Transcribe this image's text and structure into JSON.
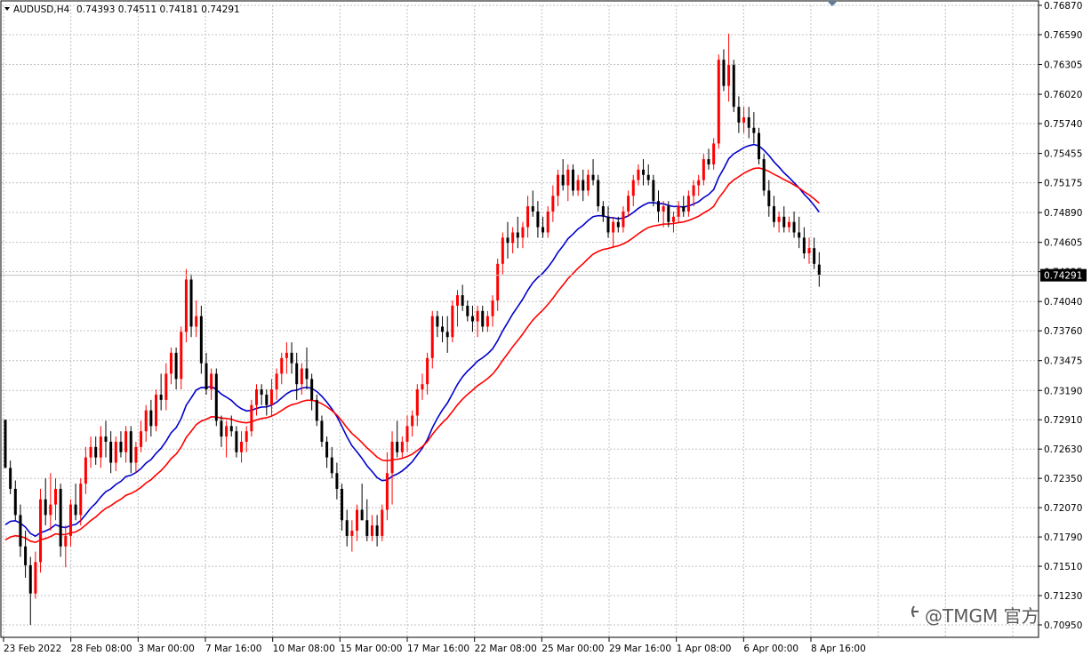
{
  "header": {
    "symbol_label": "AUDUSD,H4",
    "ohlc_label": "0.74393 0.74511 0.74181 0.74291"
  },
  "price_box": "0.74291",
  "watermark": "@TMGM 官方",
  "colors": {
    "bull": "#ff0000",
    "bear": "#000000",
    "ma_fast": "#0000cc",
    "ma_slow": "#ff0000",
    "grid": "#c0c0c0",
    "price_line": "#c0c0c0"
  },
  "chart_data": {
    "type": "candlestick",
    "symbol": "AUDUSD",
    "timeframe": "H4",
    "ylim": [
      0.7095,
      0.7687
    ],
    "y_ticks": [
      "0.76870",
      "0.76590",
      "0.76305",
      "0.76020",
      "0.75740",
      "0.75455",
      "0.75175",
      "0.74890",
      "0.74605",
      "0.74325",
      "0.74040",
      "0.73760",
      "0.73475",
      "0.73190",
      "0.72910",
      "0.72630",
      "0.72350",
      "0.72070",
      "0.71790",
      "0.71510",
      "0.71230",
      "0.70950"
    ],
    "x_ticks": [
      "23 Feb 2022",
      "28 Feb 08:00",
      "3 Mar 00:00",
      "7 Mar 16:00",
      "10 Mar 08:00",
      "15 Mar 00:00",
      "17 Mar 16:00",
      "22 Mar 08:00",
      "25 Mar 00:00",
      "29 Mar 16:00",
      "1 Apr 08:00",
      "6 Apr 00:00",
      "8 Apr 16:00"
    ],
    "last_close": 0.74291,
    "candles": [
      {
        "o": 0.7291,
        "h": 0.7291,
        "l": 0.7245,
        "c": 0.7245
      },
      {
        "o": 0.7245,
        "h": 0.7252,
        "l": 0.722,
        "c": 0.7225
      },
      {
        "o": 0.7225,
        "h": 0.7233,
        "l": 0.7195,
        "c": 0.72
      },
      {
        "o": 0.72,
        "h": 0.721,
        "l": 0.716,
        "c": 0.717
      },
      {
        "o": 0.717,
        "h": 0.7185,
        "l": 0.714,
        "c": 0.7152
      },
      {
        "o": 0.7152,
        "h": 0.716,
        "l": 0.7095,
        "c": 0.7125
      },
      {
        "o": 0.7125,
        "h": 0.7165,
        "l": 0.712,
        "c": 0.7155
      },
      {
        "o": 0.7155,
        "h": 0.7225,
        "l": 0.7145,
        "c": 0.7215
      },
      {
        "o": 0.7215,
        "h": 0.7235,
        "l": 0.719,
        "c": 0.72
      },
      {
        "o": 0.72,
        "h": 0.724,
        "l": 0.7185,
        "c": 0.721
      },
      {
        "o": 0.721,
        "h": 0.7235,
        "l": 0.7195,
        "c": 0.7225
      },
      {
        "o": 0.7225,
        "h": 0.723,
        "l": 0.716,
        "c": 0.717
      },
      {
        "o": 0.717,
        "h": 0.719,
        "l": 0.715,
        "c": 0.718
      },
      {
        "o": 0.718,
        "h": 0.7215,
        "l": 0.717,
        "c": 0.721
      },
      {
        "o": 0.721,
        "h": 0.723,
        "l": 0.7195,
        "c": 0.72
      },
      {
        "o": 0.72,
        "h": 0.7235,
        "l": 0.719,
        "c": 0.723
      },
      {
        "o": 0.723,
        "h": 0.7265,
        "l": 0.722,
        "c": 0.7255
      },
      {
        "o": 0.7255,
        "h": 0.7275,
        "l": 0.7245,
        "c": 0.7265
      },
      {
        "o": 0.7265,
        "h": 0.7275,
        "l": 0.7248,
        "c": 0.7255
      },
      {
        "o": 0.7255,
        "h": 0.7285,
        "l": 0.7245,
        "c": 0.7275
      },
      {
        "o": 0.7275,
        "h": 0.729,
        "l": 0.7255,
        "c": 0.727
      },
      {
        "o": 0.727,
        "h": 0.728,
        "l": 0.724,
        "c": 0.725
      },
      {
        "o": 0.725,
        "h": 0.7275,
        "l": 0.7242,
        "c": 0.727
      },
      {
        "o": 0.727,
        "h": 0.728,
        "l": 0.7255,
        "c": 0.726
      },
      {
        "o": 0.726,
        "h": 0.7285,
        "l": 0.725,
        "c": 0.728
      },
      {
        "o": 0.728,
        "h": 0.7285,
        "l": 0.724,
        "c": 0.725
      },
      {
        "o": 0.725,
        "h": 0.727,
        "l": 0.724,
        "c": 0.7265
      },
      {
        "o": 0.7265,
        "h": 0.729,
        "l": 0.726,
        "c": 0.728
      },
      {
        "o": 0.728,
        "h": 0.7305,
        "l": 0.727,
        "c": 0.73
      },
      {
        "o": 0.73,
        "h": 0.731,
        "l": 0.7275,
        "c": 0.7285
      },
      {
        "o": 0.7285,
        "h": 0.732,
        "l": 0.728,
        "c": 0.7315
      },
      {
        "o": 0.7315,
        "h": 0.7335,
        "l": 0.73,
        "c": 0.731
      },
      {
        "o": 0.731,
        "h": 0.7345,
        "l": 0.73,
        "c": 0.7335
      },
      {
        "o": 0.7335,
        "h": 0.736,
        "l": 0.7325,
        "c": 0.7355
      },
      {
        "o": 0.7355,
        "h": 0.736,
        "l": 0.732,
        "c": 0.733
      },
      {
        "o": 0.733,
        "h": 0.738,
        "l": 0.732,
        "c": 0.7375
      },
      {
        "o": 0.7375,
        "h": 0.7435,
        "l": 0.7365,
        "c": 0.7425
      },
      {
        "o": 0.7425,
        "h": 0.743,
        "l": 0.737,
        "c": 0.738
      },
      {
        "o": 0.738,
        "h": 0.7405,
        "l": 0.737,
        "c": 0.739
      },
      {
        "o": 0.739,
        "h": 0.74,
        "l": 0.7335,
        "c": 0.7345
      },
      {
        "o": 0.7345,
        "h": 0.7355,
        "l": 0.7315,
        "c": 0.732
      },
      {
        "o": 0.732,
        "h": 0.734,
        "l": 0.731,
        "c": 0.7335
      },
      {
        "o": 0.7335,
        "h": 0.734,
        "l": 0.7285,
        "c": 0.729
      },
      {
        "o": 0.729,
        "h": 0.7295,
        "l": 0.7265,
        "c": 0.7275
      },
      {
        "o": 0.7275,
        "h": 0.729,
        "l": 0.7255,
        "c": 0.7285
      },
      {
        "o": 0.7285,
        "h": 0.7295,
        "l": 0.7275,
        "c": 0.728
      },
      {
        "o": 0.728,
        "h": 0.7285,
        "l": 0.7255,
        "c": 0.726
      },
      {
        "o": 0.726,
        "h": 0.728,
        "l": 0.725,
        "c": 0.727
      },
      {
        "o": 0.727,
        "h": 0.7285,
        "l": 0.726,
        "c": 0.728
      },
      {
        "o": 0.728,
        "h": 0.731,
        "l": 0.7275,
        "c": 0.7305
      },
      {
        "o": 0.7305,
        "h": 0.7325,
        "l": 0.7295,
        "c": 0.732
      },
      {
        "o": 0.732,
        "h": 0.7325,
        "l": 0.7305,
        "c": 0.7315
      },
      {
        "o": 0.7315,
        "h": 0.732,
        "l": 0.7295,
        "c": 0.7305
      },
      {
        "o": 0.7305,
        "h": 0.733,
        "l": 0.7295,
        "c": 0.732
      },
      {
        "o": 0.732,
        "h": 0.734,
        "l": 0.731,
        "c": 0.7335
      },
      {
        "o": 0.7335,
        "h": 0.7355,
        "l": 0.7325,
        "c": 0.735
      },
      {
        "o": 0.735,
        "h": 0.7365,
        "l": 0.7335,
        "c": 0.7355
      },
      {
        "o": 0.7355,
        "h": 0.7365,
        "l": 0.7335,
        "c": 0.7345
      },
      {
        "o": 0.7345,
        "h": 0.7355,
        "l": 0.731,
        "c": 0.7325
      },
      {
        "o": 0.7325,
        "h": 0.7345,
        "l": 0.7315,
        "c": 0.734
      },
      {
        "o": 0.734,
        "h": 0.736,
        "l": 0.732,
        "c": 0.733
      },
      {
        "o": 0.733,
        "h": 0.7335,
        "l": 0.73,
        "c": 0.731
      },
      {
        "o": 0.731,
        "h": 0.7315,
        "l": 0.7285,
        "c": 0.729
      },
      {
        "o": 0.729,
        "h": 0.7295,
        "l": 0.7265,
        "c": 0.727
      },
      {
        "o": 0.727,
        "h": 0.7275,
        "l": 0.7245,
        "c": 0.7255
      },
      {
        "o": 0.7255,
        "h": 0.7265,
        "l": 0.7235,
        "c": 0.724
      },
      {
        "o": 0.724,
        "h": 0.725,
        "l": 0.7215,
        "c": 0.7225
      },
      {
        "o": 0.7225,
        "h": 0.723,
        "l": 0.7185,
        "c": 0.7195
      },
      {
        "o": 0.7195,
        "h": 0.7205,
        "l": 0.717,
        "c": 0.718
      },
      {
        "o": 0.718,
        "h": 0.7195,
        "l": 0.7165,
        "c": 0.7185
      },
      {
        "o": 0.7185,
        "h": 0.721,
        "l": 0.7175,
        "c": 0.7205
      },
      {
        "o": 0.7205,
        "h": 0.723,
        "l": 0.7195,
        "c": 0.7195
      },
      {
        "o": 0.7195,
        "h": 0.7215,
        "l": 0.7175,
        "c": 0.718
      },
      {
        "o": 0.718,
        "h": 0.72,
        "l": 0.7175,
        "c": 0.719
      },
      {
        "o": 0.719,
        "h": 0.72,
        "l": 0.717,
        "c": 0.718
      },
      {
        "o": 0.718,
        "h": 0.721,
        "l": 0.7175,
        "c": 0.7205
      },
      {
        "o": 0.7205,
        "h": 0.726,
        "l": 0.7195,
        "c": 0.724
      },
      {
        "o": 0.724,
        "h": 0.728,
        "l": 0.721,
        "c": 0.727
      },
      {
        "o": 0.727,
        "h": 0.729,
        "l": 0.7255,
        "c": 0.726
      },
      {
        "o": 0.726,
        "h": 0.7275,
        "l": 0.7255,
        "c": 0.727
      },
      {
        "o": 0.727,
        "h": 0.7295,
        "l": 0.726,
        "c": 0.7285
      },
      {
        "o": 0.7285,
        "h": 0.73,
        "l": 0.7275,
        "c": 0.7295
      },
      {
        "o": 0.7295,
        "h": 0.7325,
        "l": 0.7285,
        "c": 0.732
      },
      {
        "o": 0.732,
        "h": 0.7335,
        "l": 0.731,
        "c": 0.7325
      },
      {
        "o": 0.7325,
        "h": 0.7355,
        "l": 0.7315,
        "c": 0.735
      },
      {
        "o": 0.735,
        "h": 0.7395,
        "l": 0.734,
        "c": 0.739
      },
      {
        "o": 0.739,
        "h": 0.7395,
        "l": 0.737,
        "c": 0.738
      },
      {
        "o": 0.738,
        "h": 0.739,
        "l": 0.7365,
        "c": 0.7375
      },
      {
        "o": 0.7375,
        "h": 0.739,
        "l": 0.7355,
        "c": 0.737
      },
      {
        "o": 0.737,
        "h": 0.7405,
        "l": 0.7365,
        "c": 0.74
      },
      {
        "o": 0.74,
        "h": 0.7415,
        "l": 0.738,
        "c": 0.741
      },
      {
        "o": 0.741,
        "h": 0.742,
        "l": 0.7395,
        "c": 0.74
      },
      {
        "o": 0.74,
        "h": 0.7405,
        "l": 0.7385,
        "c": 0.739
      },
      {
        "o": 0.739,
        "h": 0.74,
        "l": 0.7375,
        "c": 0.7385
      },
      {
        "o": 0.7385,
        "h": 0.74,
        "l": 0.737,
        "c": 0.7395
      },
      {
        "o": 0.7395,
        "h": 0.74,
        "l": 0.7375,
        "c": 0.738
      },
      {
        "o": 0.738,
        "h": 0.7395,
        "l": 0.7375,
        "c": 0.739
      },
      {
        "o": 0.739,
        "h": 0.741,
        "l": 0.738,
        "c": 0.7405
      },
      {
        "o": 0.7405,
        "h": 0.7445,
        "l": 0.7395,
        "c": 0.744
      },
      {
        "o": 0.744,
        "h": 0.747,
        "l": 0.743,
        "c": 0.7465
      },
      {
        "o": 0.7465,
        "h": 0.748,
        "l": 0.7445,
        "c": 0.746
      },
      {
        "o": 0.746,
        "h": 0.7475,
        "l": 0.745,
        "c": 0.747
      },
      {
        "o": 0.747,
        "h": 0.7485,
        "l": 0.7455,
        "c": 0.7465
      },
      {
        "o": 0.7465,
        "h": 0.748,
        "l": 0.7455,
        "c": 0.7475
      },
      {
        "o": 0.7475,
        "h": 0.7505,
        "l": 0.7465,
        "c": 0.7495
      },
      {
        "o": 0.7495,
        "h": 0.751,
        "l": 0.7485,
        "c": 0.749
      },
      {
        "o": 0.749,
        "h": 0.75,
        "l": 0.7465,
        "c": 0.7475
      },
      {
        "o": 0.7475,
        "h": 0.7485,
        "l": 0.7465,
        "c": 0.747
      },
      {
        "o": 0.747,
        "h": 0.7495,
        "l": 0.7465,
        "c": 0.749
      },
      {
        "o": 0.749,
        "h": 0.7515,
        "l": 0.748,
        "c": 0.7505
      },
      {
        "o": 0.7505,
        "h": 0.753,
        "l": 0.7495,
        "c": 0.7525
      },
      {
        "o": 0.7525,
        "h": 0.754,
        "l": 0.751,
        "c": 0.7515
      },
      {
        "o": 0.7515,
        "h": 0.7535,
        "l": 0.75,
        "c": 0.753
      },
      {
        "o": 0.753,
        "h": 0.7535,
        "l": 0.7505,
        "c": 0.751
      },
      {
        "o": 0.751,
        "h": 0.7525,
        "l": 0.7505,
        "c": 0.752
      },
      {
        "o": 0.752,
        "h": 0.753,
        "l": 0.75,
        "c": 0.751
      },
      {
        "o": 0.751,
        "h": 0.753,
        "l": 0.7505,
        "c": 0.7525
      },
      {
        "o": 0.7525,
        "h": 0.754,
        "l": 0.7515,
        "c": 0.752
      },
      {
        "o": 0.752,
        "h": 0.7525,
        "l": 0.749,
        "c": 0.7495
      },
      {
        "o": 0.7495,
        "h": 0.75,
        "l": 0.748,
        "c": 0.7485
      },
      {
        "o": 0.7485,
        "h": 0.7495,
        "l": 0.7465,
        "c": 0.747
      },
      {
        "o": 0.747,
        "h": 0.7485,
        "l": 0.7455,
        "c": 0.748
      },
      {
        "o": 0.748,
        "h": 0.7485,
        "l": 0.747,
        "c": 0.7475
      },
      {
        "o": 0.7475,
        "h": 0.7495,
        "l": 0.747,
        "c": 0.749
      },
      {
        "o": 0.749,
        "h": 0.751,
        "l": 0.7485,
        "c": 0.7505
      },
      {
        "o": 0.7505,
        "h": 0.7525,
        "l": 0.7495,
        "c": 0.752
      },
      {
        "o": 0.752,
        "h": 0.7535,
        "l": 0.7515,
        "c": 0.753
      },
      {
        "o": 0.753,
        "h": 0.754,
        "l": 0.7515,
        "c": 0.7525
      },
      {
        "o": 0.7525,
        "h": 0.7535,
        "l": 0.7515,
        "c": 0.752
      },
      {
        "o": 0.752,
        "h": 0.7525,
        "l": 0.7495,
        "c": 0.75
      },
      {
        "o": 0.75,
        "h": 0.751,
        "l": 0.748,
        "c": 0.749
      },
      {
        "o": 0.749,
        "h": 0.75,
        "l": 0.7475,
        "c": 0.7495
      },
      {
        "o": 0.7495,
        "h": 0.75,
        "l": 0.7475,
        "c": 0.748
      },
      {
        "o": 0.748,
        "h": 0.749,
        "l": 0.747,
        "c": 0.7485
      },
      {
        "o": 0.7485,
        "h": 0.75,
        "l": 0.748,
        "c": 0.7495
      },
      {
        "o": 0.7495,
        "h": 0.7505,
        "l": 0.7485,
        "c": 0.749
      },
      {
        "o": 0.749,
        "h": 0.751,
        "l": 0.7485,
        "c": 0.7505
      },
      {
        "o": 0.7505,
        "h": 0.752,
        "l": 0.7495,
        "c": 0.7515
      },
      {
        "o": 0.7515,
        "h": 0.7525,
        "l": 0.7505,
        "c": 0.752
      },
      {
        "o": 0.752,
        "h": 0.7545,
        "l": 0.7515,
        "c": 0.754
      },
      {
        "o": 0.754,
        "h": 0.755,
        "l": 0.753,
        "c": 0.7535
      },
      {
        "o": 0.7535,
        "h": 0.756,
        "l": 0.753,
        "c": 0.7555
      },
      {
        "o": 0.7555,
        "h": 0.764,
        "l": 0.755,
        "c": 0.7635
      },
      {
        "o": 0.7635,
        "h": 0.7645,
        "l": 0.7605,
        "c": 0.761
      },
      {
        "o": 0.761,
        "h": 0.766,
        "l": 0.7595,
        "c": 0.763
      },
      {
        "o": 0.763,
        "h": 0.7635,
        "l": 0.7585,
        "c": 0.759
      },
      {
        "o": 0.759,
        "h": 0.76,
        "l": 0.7565,
        "c": 0.7575
      },
      {
        "o": 0.7575,
        "h": 0.759,
        "l": 0.7565,
        "c": 0.758
      },
      {
        "o": 0.758,
        "h": 0.759,
        "l": 0.756,
        "c": 0.757
      },
      {
        "o": 0.757,
        "h": 0.7585,
        "l": 0.7555,
        "c": 0.7565
      },
      {
        "o": 0.7565,
        "h": 0.757,
        "l": 0.7535,
        "c": 0.754
      },
      {
        "o": 0.754,
        "h": 0.7545,
        "l": 0.7505,
        "c": 0.751
      },
      {
        "o": 0.751,
        "h": 0.752,
        "l": 0.7485,
        "c": 0.7495
      },
      {
        "o": 0.7495,
        "h": 0.7505,
        "l": 0.7475,
        "c": 0.748
      },
      {
        "o": 0.748,
        "h": 0.749,
        "l": 0.747,
        "c": 0.7485
      },
      {
        "o": 0.7485,
        "h": 0.7495,
        "l": 0.747,
        "c": 0.7475
      },
      {
        "o": 0.7475,
        "h": 0.7485,
        "l": 0.747,
        "c": 0.748
      },
      {
        "o": 0.748,
        "h": 0.749,
        "l": 0.7465,
        "c": 0.747
      },
      {
        "o": 0.747,
        "h": 0.7485,
        "l": 0.7455,
        "c": 0.7465
      },
      {
        "o": 0.7465,
        "h": 0.7475,
        "l": 0.7445,
        "c": 0.745
      },
      {
        "o": 0.745,
        "h": 0.7465,
        "l": 0.744,
        "c": 0.7455
      },
      {
        "o": 0.7455,
        "h": 0.7465,
        "l": 0.7435,
        "c": 0.744
      },
      {
        "o": 0.74393,
        "h": 0.74511,
        "l": 0.74181,
        "c": 0.74291
      }
    ]
  }
}
